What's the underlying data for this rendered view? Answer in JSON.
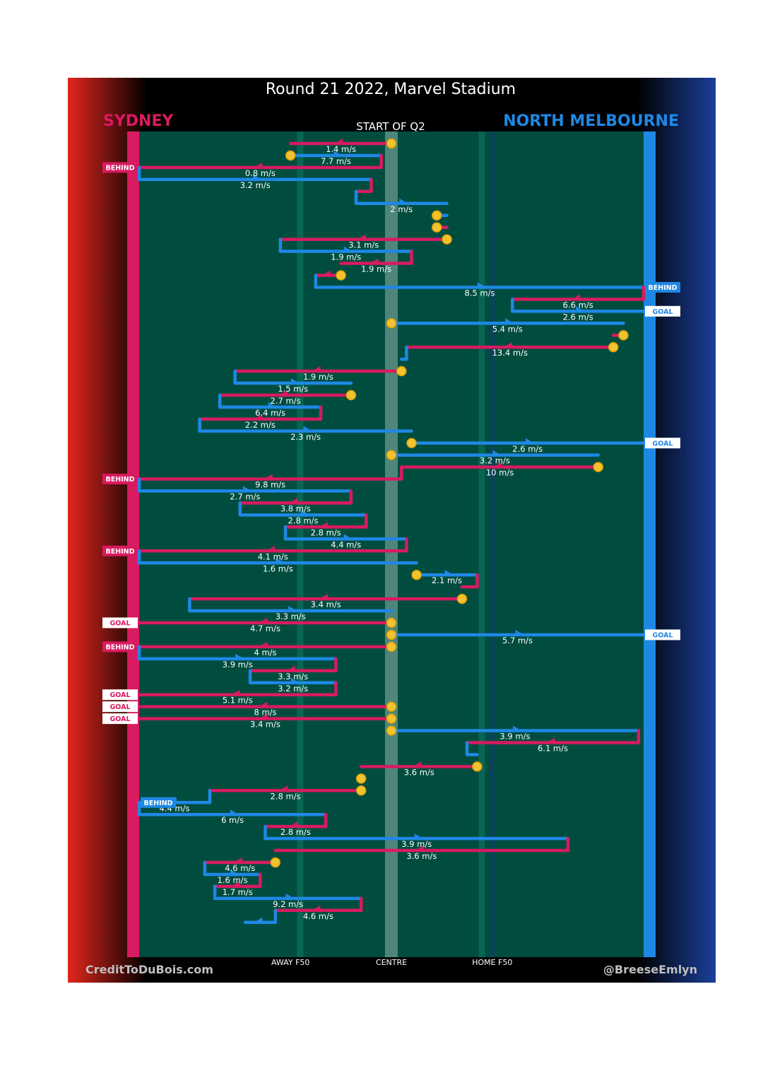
{
  "title": "Round 21 2022, Marvel Stadium",
  "home_team": "SYDNEY",
  "away_team": "NORTH MELBOURNE",
  "start_label": "START OF Q2",
  "credit_left": "CreditToDuBois.com",
  "credit_right": "@BreeseEmlyn",
  "colors": {
    "sydney": "#d81b60",
    "north": "#1e88e5",
    "field": "#004d40",
    "stoppage": "#f2c230"
  },
  "chart_data": {
    "type": "line",
    "title": "Round 21 2022, Marvel Stadium",
    "subtitle": "START OF Q2",
    "x_axis": {
      "range": [
        0,
        100
      ],
      "ticks": [
        {
          "label": "AWAY F50",
          "value": 30
        },
        {
          "label": "CENTRE",
          "value": 50
        },
        {
          "label": "HOME F50",
          "value": 70
        }
      ]
    },
    "series_names": [
      "SYDNEY",
      "NORTH MELBOURNE"
    ],
    "chains": [
      {
        "team": "S",
        "x1": 50,
        "x2": 30,
        "speed": "1.4 m/s",
        "stop_start": true
      },
      {
        "team": "N",
        "x1": 30,
        "x2": 48,
        "speed": "7.7 m/s",
        "stop_start": true
      },
      {
        "team": "S",
        "x1": 48,
        "x2": 0,
        "speed": "0.8 m/s",
        "end": "BEHIND"
      },
      {
        "team": "N",
        "x1": 0,
        "x2": 46,
        "speed": "3.2 m/s"
      },
      {
        "team": "S",
        "x1": 46,
        "x2": 43,
        "speed": ""
      },
      {
        "team": "N",
        "x1": 43,
        "x2": 61,
        "speed": "2 m/s"
      },
      {
        "team": "N",
        "x1": 59,
        "x2": 61,
        "speed": "",
        "stop_start": true
      },
      {
        "team": "S",
        "x1": 59,
        "x2": 61,
        "speed": "",
        "stop_start": true
      },
      {
        "team": "S",
        "x1": 61,
        "x2": 28,
        "speed": "3.1 m/s",
        "stop_start": true
      },
      {
        "team": "N",
        "x1": 28,
        "x2": 54,
        "speed": "1.9 m/s"
      },
      {
        "team": "S",
        "x1": 54,
        "x2": 40,
        "speed": "1.9 m/s"
      },
      {
        "team": "S",
        "x1": 40,
        "x2": 35,
        "speed": "",
        "stop_start": true
      },
      {
        "team": "N",
        "x1": 35,
        "x2": 100,
        "speed": "8.5 m/s",
        "end": "BEHIND"
      },
      {
        "team": "S",
        "x1": 100,
        "x2": 74,
        "speed": "6.6 m/s"
      },
      {
        "team": "N",
        "x1": 74,
        "x2": 100,
        "speed": "2.6 m/s",
        "end": "GOAL"
      },
      {
        "team": "N",
        "x1": 50,
        "x2": 96,
        "speed": "5.4 m/s",
        "stop_start": true
      },
      {
        "team": "S",
        "x1": 96,
        "x2": 94,
        "speed": "",
        "stop_start": true
      },
      {
        "team": "S",
        "x1": 94,
        "x2": 53,
        "speed": "13.4 m/s",
        "stop_start": true
      },
      {
        "team": "N",
        "x1": 53,
        "x2": 52,
        "speed": ""
      },
      {
        "team": "S",
        "x1": 52,
        "x2": 19,
        "speed": "1.9 m/s",
        "stop_start": true
      },
      {
        "team": "N",
        "x1": 19,
        "x2": 42,
        "speed": "1.5 m/s"
      },
      {
        "team": "S",
        "x1": 42,
        "x2": 16,
        "speed": "2.7 m/s",
        "stop_start": true
      },
      {
        "team": "N",
        "x1": 16,
        "x2": 36,
        "speed": "6.4 m/s"
      },
      {
        "team": "S",
        "x1": 36,
        "x2": 12,
        "speed": "2.2 m/s"
      },
      {
        "team": "N",
        "x1": 12,
        "x2": 54,
        "speed": "2.3 m/s"
      },
      {
        "team": "N",
        "x1": 54,
        "x2": 100,
        "speed": "2.6 m/s",
        "end": "GOAL",
        "stop_start": true
      },
      {
        "team": "N",
        "x1": 50,
        "x2": 91,
        "speed": "3.2 m/s",
        "stop_start": true
      },
      {
        "team": "S",
        "x1": 91,
        "x2": 52,
        "speed": "10 m/s",
        "stop_start": true
      },
      {
        "team": "S",
        "x1": 52,
        "x2": 0,
        "speed": "9.8 m/s",
        "end": "BEHIND"
      },
      {
        "team": "N",
        "x1": 0,
        "x2": 42,
        "speed": "2.7 m/s"
      },
      {
        "team": "S",
        "x1": 42,
        "x2": 20,
        "speed": "3.8 m/s"
      },
      {
        "team": "N",
        "x1": 20,
        "x2": 45,
        "speed": "2.8 m/s"
      },
      {
        "team": "S",
        "x1": 45,
        "x2": 29,
        "speed": "2.8 m/s"
      },
      {
        "team": "N",
        "x1": 29,
        "x2": 53,
        "speed": "4.4 m/s"
      },
      {
        "team": "S",
        "x1": 53,
        "x2": 0,
        "speed": "4.1 m/s",
        "end": "BEHIND"
      },
      {
        "team": "N",
        "x1": 0,
        "x2": 55,
        "speed": "1.6 m/s"
      },
      {
        "team": "N",
        "x1": 55,
        "x2": 67,
        "speed": "2.1 m/s",
        "stop_start": true
      },
      {
        "team": "S",
        "x1": 67,
        "x2": 64,
        "speed": ""
      },
      {
        "team": "S",
        "x1": 64,
        "x2": 10,
        "speed": "3.4 m/s",
        "stop_start": true
      },
      {
        "team": "N",
        "x1": 10,
        "x2": 50,
        "speed": "3.3 m/s"
      },
      {
        "team": "S",
        "x1": 50,
        "x2": 0,
        "speed": "4.7 m/s",
        "end": "GOAL",
        "stop_start": true
      },
      {
        "team": "N",
        "x1": 50,
        "x2": 100,
        "speed": "5.7 m/s",
        "end": "GOAL",
        "stop_start": true
      },
      {
        "team": "S",
        "x1": 50,
        "x2": 0,
        "speed": "4 m/s",
        "end": "BEHIND",
        "stop_start": true
      },
      {
        "team": "N",
        "x1": 0,
        "x2": 39,
        "speed": "3.9 m/s"
      },
      {
        "team": "S",
        "x1": 39,
        "x2": 22,
        "speed": "3.3 m/s"
      },
      {
        "team": "N",
        "x1": 22,
        "x2": 39,
        "speed": "3.2 m/s"
      },
      {
        "team": "S",
        "x1": 39,
        "x2": 0,
        "speed": "5.1 m/s",
        "end": "GOAL"
      },
      {
        "team": "S",
        "x1": 50,
        "x2": 0,
        "speed": "8 m/s",
        "end": "GOAL",
        "stop_start": true
      },
      {
        "team": "S",
        "x1": 50,
        "x2": 0,
        "speed": "3.4 m/s",
        "end": "GOAL",
        "stop_start": true
      },
      {
        "team": "N",
        "x1": 50,
        "x2": 99,
        "speed": "3.9 m/s",
        "stop_start": true
      },
      {
        "team": "S",
        "x1": 99,
        "x2": 65,
        "speed": "6.1 m/s"
      },
      {
        "team": "N",
        "x1": 65,
        "x2": 67,
        "speed": ""
      },
      {
        "team": "S",
        "x1": 67,
        "x2": 44,
        "speed": "3.6 m/s",
        "stop_start": true
      },
      {
        "team": "S",
        "x1": 44,
        "x2": 44,
        "speed": "",
        "stop_start": true
      },
      {
        "team": "S",
        "x1": 44,
        "x2": 14,
        "speed": "2.8 m/s",
        "stop_start": true
      },
      {
        "team": "N",
        "x1": 14,
        "x2": 0,
        "speed": "4.4 m/s",
        "end": "BEHIND"
      },
      {
        "team": "N",
        "x1": 0,
        "x2": 37,
        "speed": "6 m/s"
      },
      {
        "team": "S",
        "x1": 37,
        "x2": 25,
        "speed": "2.8 m/s"
      },
      {
        "team": "N",
        "x1": 25,
        "x2": 85,
        "speed": "3.9 m/s"
      },
      {
        "team": "S",
        "x1": 85,
        "x2": 27,
        "speed": "3.6 m/s"
      },
      {
        "team": "S",
        "x1": 27,
        "x2": 13,
        "speed": "4.6 m/s",
        "stop_start": true
      },
      {
        "team": "N",
        "x1": 13,
        "x2": 24,
        "speed": "1.6 m/s"
      },
      {
        "team": "S",
        "x1": 24,
        "x2": 15,
        "speed": "1.7 m/s"
      },
      {
        "team": "N",
        "x1": 15,
        "x2": 44,
        "speed": "9.2 m/s"
      },
      {
        "team": "S",
        "x1": 44,
        "x2": 27,
        "speed": "4.6 m/s"
      },
      {
        "team": "N",
        "x1": 27,
        "x2": 21,
        "speed": ""
      }
    ]
  }
}
